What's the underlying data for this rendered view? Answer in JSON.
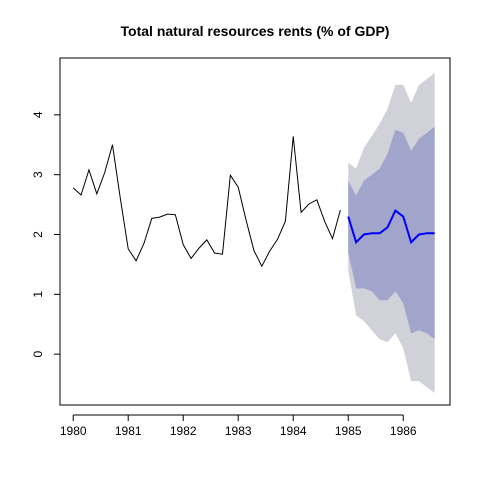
{
  "chart_data": {
    "type": "line",
    "title": "Total natural resources rents (% of GDP)",
    "xlim": [
      1979.76,
      1986.85
    ],
    "ylim": [
      -0.85,
      4.95
    ],
    "xticks": [
      1980,
      1981,
      1982,
      1983,
      1984,
      1985,
      1986
    ],
    "yticks": [
      0,
      1,
      2,
      3,
      4
    ],
    "bands": [
      {
        "color": "#d1d1d9",
        "x": [
          1985,
          1985.143,
          1985.286,
          1985.429,
          1985.571,
          1985.714,
          1985.857,
          1986,
          1986.143,
          1986.286,
          1986.429,
          1986.571
        ],
        "upper": [
          3.2,
          3.1,
          3.45,
          3.65,
          3.85,
          4.1,
          4.5,
          4.5,
          4.2,
          4.5,
          4.6,
          4.7
        ],
        "lower": [
          1.4,
          0.65,
          0.55,
          0.4,
          0.25,
          0.2,
          0.35,
          0.1,
          -0.45,
          -0.45,
          -0.55,
          -0.65
        ]
      },
      {
        "color": "#a1a5cb",
        "x": [
          1985,
          1985.143,
          1985.286,
          1985.429,
          1985.571,
          1985.714,
          1985.857,
          1986,
          1986.143,
          1986.286,
          1986.429,
          1986.571
        ],
        "upper": [
          2.9,
          2.65,
          2.9,
          3.0,
          3.1,
          3.35,
          3.75,
          3.7,
          3.4,
          3.6,
          3.7,
          3.8
        ],
        "lower": [
          1.7,
          1.1,
          1.1,
          1.05,
          0.9,
          0.9,
          1.05,
          0.85,
          0.35,
          0.4,
          0.35,
          0.25
        ]
      }
    ],
    "series": [
      {
        "color": "#000000",
        "width": 1,
        "x": [
          1980,
          1980.143,
          1980.286,
          1980.429,
          1980.571,
          1980.714,
          1980.857,
          1981,
          1981.143,
          1981.286,
          1981.429,
          1981.571,
          1981.714,
          1981.857,
          1982,
          1982.143,
          1982.286,
          1982.429,
          1982.571,
          1982.714,
          1982.857,
          1983,
          1983.143,
          1983.286,
          1983.429,
          1983.571,
          1983.714,
          1983.857,
          1984,
          1984.143,
          1984.286,
          1984.429,
          1984.571,
          1984.714,
          1984.857
        ],
        "values": [
          2.78,
          2.66,
          3.08,
          2.68,
          3.03,
          3.5,
          2.6,
          1.76,
          1.56,
          1.85,
          2.27,
          2.29,
          2.34,
          2.33,
          1.83,
          1.6,
          1.77,
          1.91,
          1.69,
          1.67,
          2.99,
          2.79,
          2.24,
          1.73,
          1.47,
          1.72,
          1.92,
          2.22,
          3.64,
          2.37,
          2.51,
          2.58,
          2.22,
          1.93,
          2.41
        ]
      },
      {
        "color": "#0000ff",
        "width": 2,
        "x": [
          1985,
          1985.143,
          1985.286,
          1985.429,
          1985.571,
          1985.714,
          1985.857,
          1986,
          1986.143,
          1986.286,
          1986.429,
          1986.571
        ],
        "values": [
          2.3,
          1.87,
          2.0,
          2.02,
          2.02,
          2.12,
          2.4,
          2.3,
          1.87,
          2.0,
          2.02,
          2.02
        ]
      }
    ]
  }
}
